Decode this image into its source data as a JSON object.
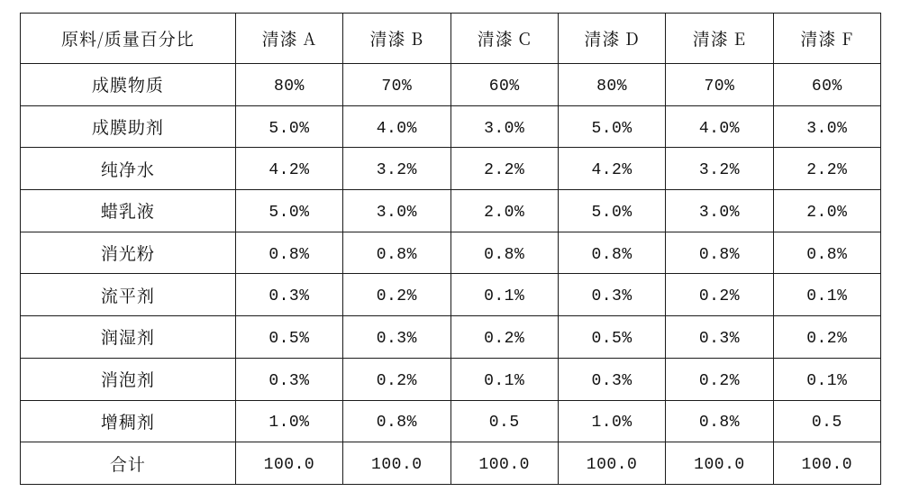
{
  "table": {
    "type": "table",
    "background_color": "#ffffff",
    "border_color": "#1b1b1b",
    "text_color": "#111111",
    "header_fontsize_pt": 15,
    "body_fontsize_pt": 14,
    "row_label_column_width_pct": 25,
    "data_column_width_pct": 12.5,
    "corner_label": "原料/质量百分比",
    "columns": [
      "清漆 A",
      "清漆 B",
      "清漆 C",
      "清漆 D",
      "清漆 E",
      "清漆 F"
    ],
    "rows": [
      {
        "label": "成膜物质",
        "values": [
          "80%",
          "70%",
          "60%",
          "80%",
          "70%",
          "60%"
        ]
      },
      {
        "label": "成膜助剂",
        "values": [
          "5.0%",
          "4.0%",
          "3.0%",
          "5.0%",
          "4.0%",
          "3.0%"
        ]
      },
      {
        "label": "纯净水",
        "values": [
          "4.2%",
          "3.2%",
          "2.2%",
          "4.2%",
          "3.2%",
          "2.2%"
        ]
      },
      {
        "label": "蜡乳液",
        "values": [
          "5.0%",
          "3.0%",
          "2.0%",
          "5.0%",
          "3.0%",
          "2.0%"
        ]
      },
      {
        "label": "消光粉",
        "values": [
          "0.8%",
          "0.8%",
          "0.8%",
          "0.8%",
          "0.8%",
          "0.8%"
        ]
      },
      {
        "label": "流平剂",
        "values": [
          "0.3%",
          "0.2%",
          "0.1%",
          "0.3%",
          "0.2%",
          "0.1%"
        ]
      },
      {
        "label": "润湿剂",
        "values": [
          "0.5%",
          "0.3%",
          "0.2%",
          "0.5%",
          "0.3%",
          "0.2%"
        ]
      },
      {
        "label": "消泡剂",
        "values": [
          "0.3%",
          "0.2%",
          "0.1%",
          "0.3%",
          "0.2%",
          "0.1%"
        ]
      },
      {
        "label": "增稠剂",
        "values": [
          "1.0%",
          "0.8%",
          "0.5",
          "1.0%",
          "0.8%",
          "0.5"
        ]
      },
      {
        "label": "合计",
        "values": [
          "100.0",
          "100.0",
          "100.0",
          "100.0",
          "100.0",
          "100.0"
        ]
      }
    ]
  }
}
